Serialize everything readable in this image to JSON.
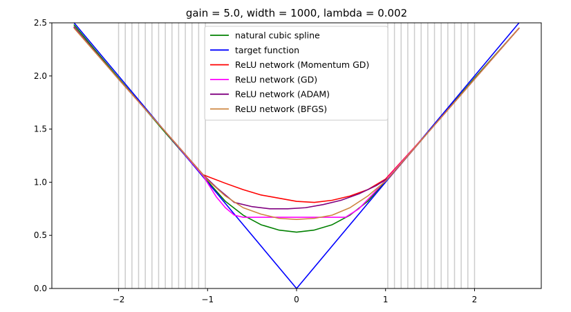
{
  "chart_data": {
    "type": "line",
    "title": "gain = 5.0, width = 1000, lambda = 0.002",
    "xlabel": "",
    "ylabel": "",
    "xlim": [
      -2.75,
      2.75
    ],
    "ylim": [
      0,
      2.5
    ],
    "x_ticks": [
      {
        "value": -2,
        "label": "−2"
      },
      {
        "value": -1,
        "label": "−1"
      },
      {
        "value": 0,
        "label": "0"
      },
      {
        "value": 1,
        "label": "1"
      },
      {
        "value": 2,
        "label": "2"
      }
    ],
    "y_ticks": [
      {
        "value": 0,
        "label": "0.0"
      },
      {
        "value": 0.5,
        "label": "0.5"
      },
      {
        "value": 1.0,
        "label": "1.0"
      },
      {
        "value": 1.5,
        "label": "1.5"
      },
      {
        "value": 2.0,
        "label": "2.0"
      },
      {
        "value": 2.5,
        "label": "2.5"
      }
    ],
    "grid": false,
    "legend_position": "top-center",
    "vertical_lines_color": "#cccccc",
    "vertical_lines_x": [
      -2.0,
      -1.925,
      -1.85,
      -1.775,
      -1.7,
      -1.625,
      -1.55,
      -1.475,
      -1.4,
      -1.325,
      -1.25,
      -1.175,
      -1.1,
      -1.025,
      1.025,
      1.1,
      1.175,
      1.25,
      1.325,
      1.4,
      1.475,
      1.55,
      1.625,
      1.7,
      1.775,
      1.85,
      1.925,
      2.0
    ],
    "series": [
      {
        "name": "natural cubic spline",
        "color": "#008000",
        "x": [
          -2.5,
          -2.0,
          -1.5,
          -1.0,
          -0.8,
          -0.6,
          -0.4,
          -0.2,
          0.0,
          0.2,
          0.4,
          0.6,
          0.8,
          1.0,
          1.5,
          2.0,
          2.5
        ],
        "y": [
          2.48,
          1.98,
          1.49,
          1.01,
          0.82,
          0.69,
          0.6,
          0.55,
          0.53,
          0.55,
          0.6,
          0.69,
          0.82,
          1.01,
          1.49,
          1.98,
          2.45
        ]
      },
      {
        "name": "target function",
        "color": "#0000ff",
        "x": [
          -2.5,
          0.0,
          2.5
        ],
        "y": [
          2.5,
          0.0,
          2.5
        ]
      },
      {
        "name": "ReLU network (Momentum GD)",
        "color": "#ff0000",
        "x": [
          -2.5,
          -2.0,
          -1.5,
          -1.05,
          -0.8,
          -0.6,
          -0.4,
          -0.2,
          0.0,
          0.2,
          0.4,
          0.6,
          0.8,
          1.0,
          1.5,
          2.0,
          2.5
        ],
        "y": [
          2.46,
          1.97,
          1.5,
          1.07,
          0.99,
          0.93,
          0.88,
          0.85,
          0.82,
          0.81,
          0.83,
          0.87,
          0.93,
          1.03,
          1.49,
          1.97,
          2.45
        ]
      },
      {
        "name": "ReLU network (GD)",
        "color": "#ff00ff",
        "x": [
          -2.5,
          -2.0,
          -1.5,
          -1.05,
          -0.9,
          -0.8,
          -0.7,
          -0.6,
          -0.3,
          0.0,
          0.3,
          0.55,
          0.7,
          0.85,
          1.0,
          1.5,
          2.0,
          2.5
        ],
        "y": [
          2.46,
          1.97,
          1.5,
          1.06,
          0.86,
          0.76,
          0.69,
          0.67,
          0.67,
          0.67,
          0.67,
          0.67,
          0.75,
          0.88,
          1.02,
          1.49,
          1.97,
          2.45
        ]
      },
      {
        "name": "ReLU network (ADAM)",
        "color": "#800080",
        "x": [
          -2.5,
          -2.0,
          -1.5,
          -1.05,
          -0.9,
          -0.7,
          -0.5,
          -0.3,
          -0.1,
          0.1,
          0.3,
          0.5,
          0.7,
          0.9,
          1.05,
          1.5,
          2.0,
          2.5
        ],
        "y": [
          2.46,
          1.97,
          1.5,
          1.07,
          0.95,
          0.81,
          0.77,
          0.75,
          0.75,
          0.76,
          0.79,
          0.83,
          0.89,
          0.97,
          1.05,
          1.49,
          1.97,
          2.45
        ]
      },
      {
        "name": "ReLU network (BFGS)",
        "color": "#cd853f",
        "x": [
          -2.5,
          -2.0,
          -1.5,
          -1.0,
          -0.8,
          -0.6,
          -0.4,
          -0.2,
          0.0,
          0.2,
          0.4,
          0.6,
          0.8,
          1.0,
          1.5,
          2.0,
          2.5
        ],
        "y": [
          2.45,
          1.97,
          1.5,
          1.02,
          0.87,
          0.76,
          0.7,
          0.66,
          0.65,
          0.66,
          0.69,
          0.76,
          0.87,
          1.01,
          1.49,
          1.97,
          2.45
        ]
      }
    ]
  }
}
